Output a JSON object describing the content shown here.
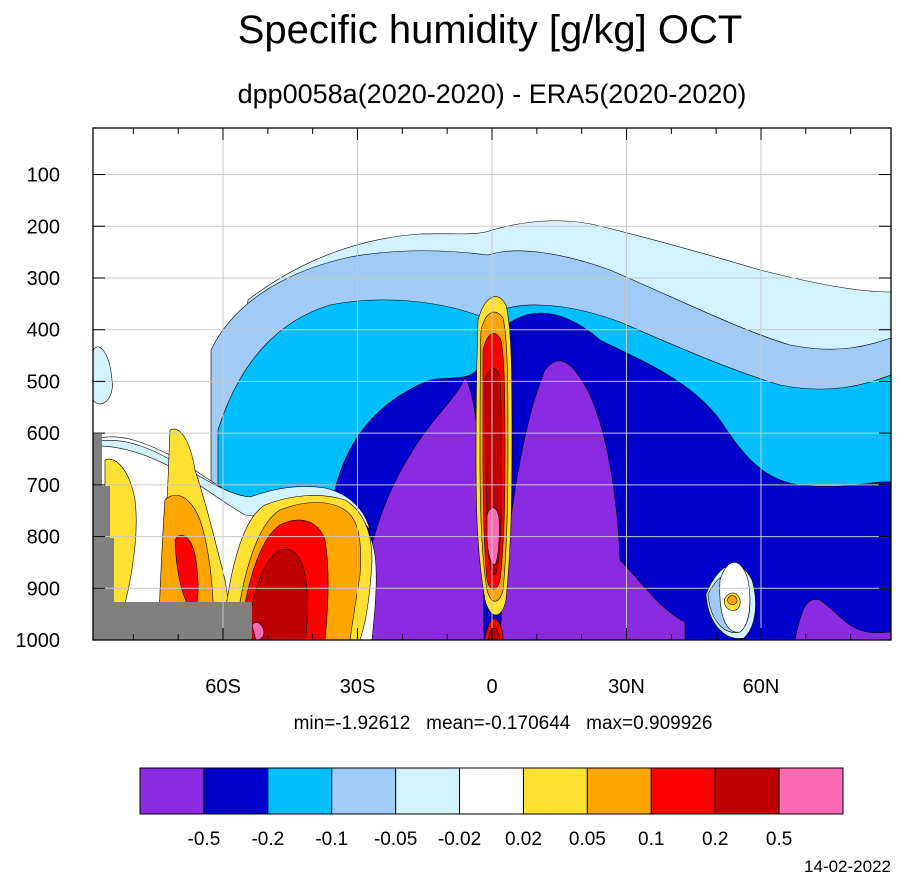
{
  "chart_data": {
    "type": "heatmap",
    "title": "Specific humidity [g/kg] OCT",
    "subtitle": "dpp0058a(2020-2020) - ERA5(2020-2020)",
    "xlabel": "",
    "ylabel": "",
    "x_ticks": [
      {
        "value": -60,
        "label": "60S"
      },
      {
        "value": -30,
        "label": "30S"
      },
      {
        "value": 0,
        "label": "0"
      },
      {
        "value": 30,
        "label": "30N"
      },
      {
        "value": 60,
        "label": "60N"
      }
    ],
    "xlim": [
      -89,
      89
    ],
    "y_ticks": [
      {
        "value": 100,
        "label": "100"
      },
      {
        "value": 200,
        "label": "200"
      },
      {
        "value": 300,
        "label": "300"
      },
      {
        "value": 400,
        "label": "400"
      },
      {
        "value": 500,
        "label": "500"
      },
      {
        "value": 600,
        "label": "600"
      },
      {
        "value": 700,
        "label": "700"
      },
      {
        "value": 800,
        "label": "800"
      },
      {
        "value": 900,
        "label": "900"
      },
      {
        "value": 1000,
        "label": "1000"
      }
    ],
    "ylim": [
      10,
      1000
    ],
    "y_reversed": true,
    "grid": true,
    "stats_text": "min=-1.92612   mean=-0.170644   max=0.909926",
    "colorbar": {
      "colors": [
        "#8a2be2",
        "#0000cd",
        "#00bfff",
        "#9fcbf6",
        "#d3f2ff",
        "#ffffff",
        "#ffe033",
        "#ffa500",
        "#ff0000",
        "#c00000",
        "#ff69b4"
      ],
      "levels": [
        "-0.5",
        "-0.2",
        "-0.1",
        "-0.05",
        "-0.02",
        "0.02",
        "0.05",
        "0.1",
        "0.2",
        "0.5"
      ]
    },
    "missing_color": "#808080",
    "date": "14-02-2022"
  }
}
